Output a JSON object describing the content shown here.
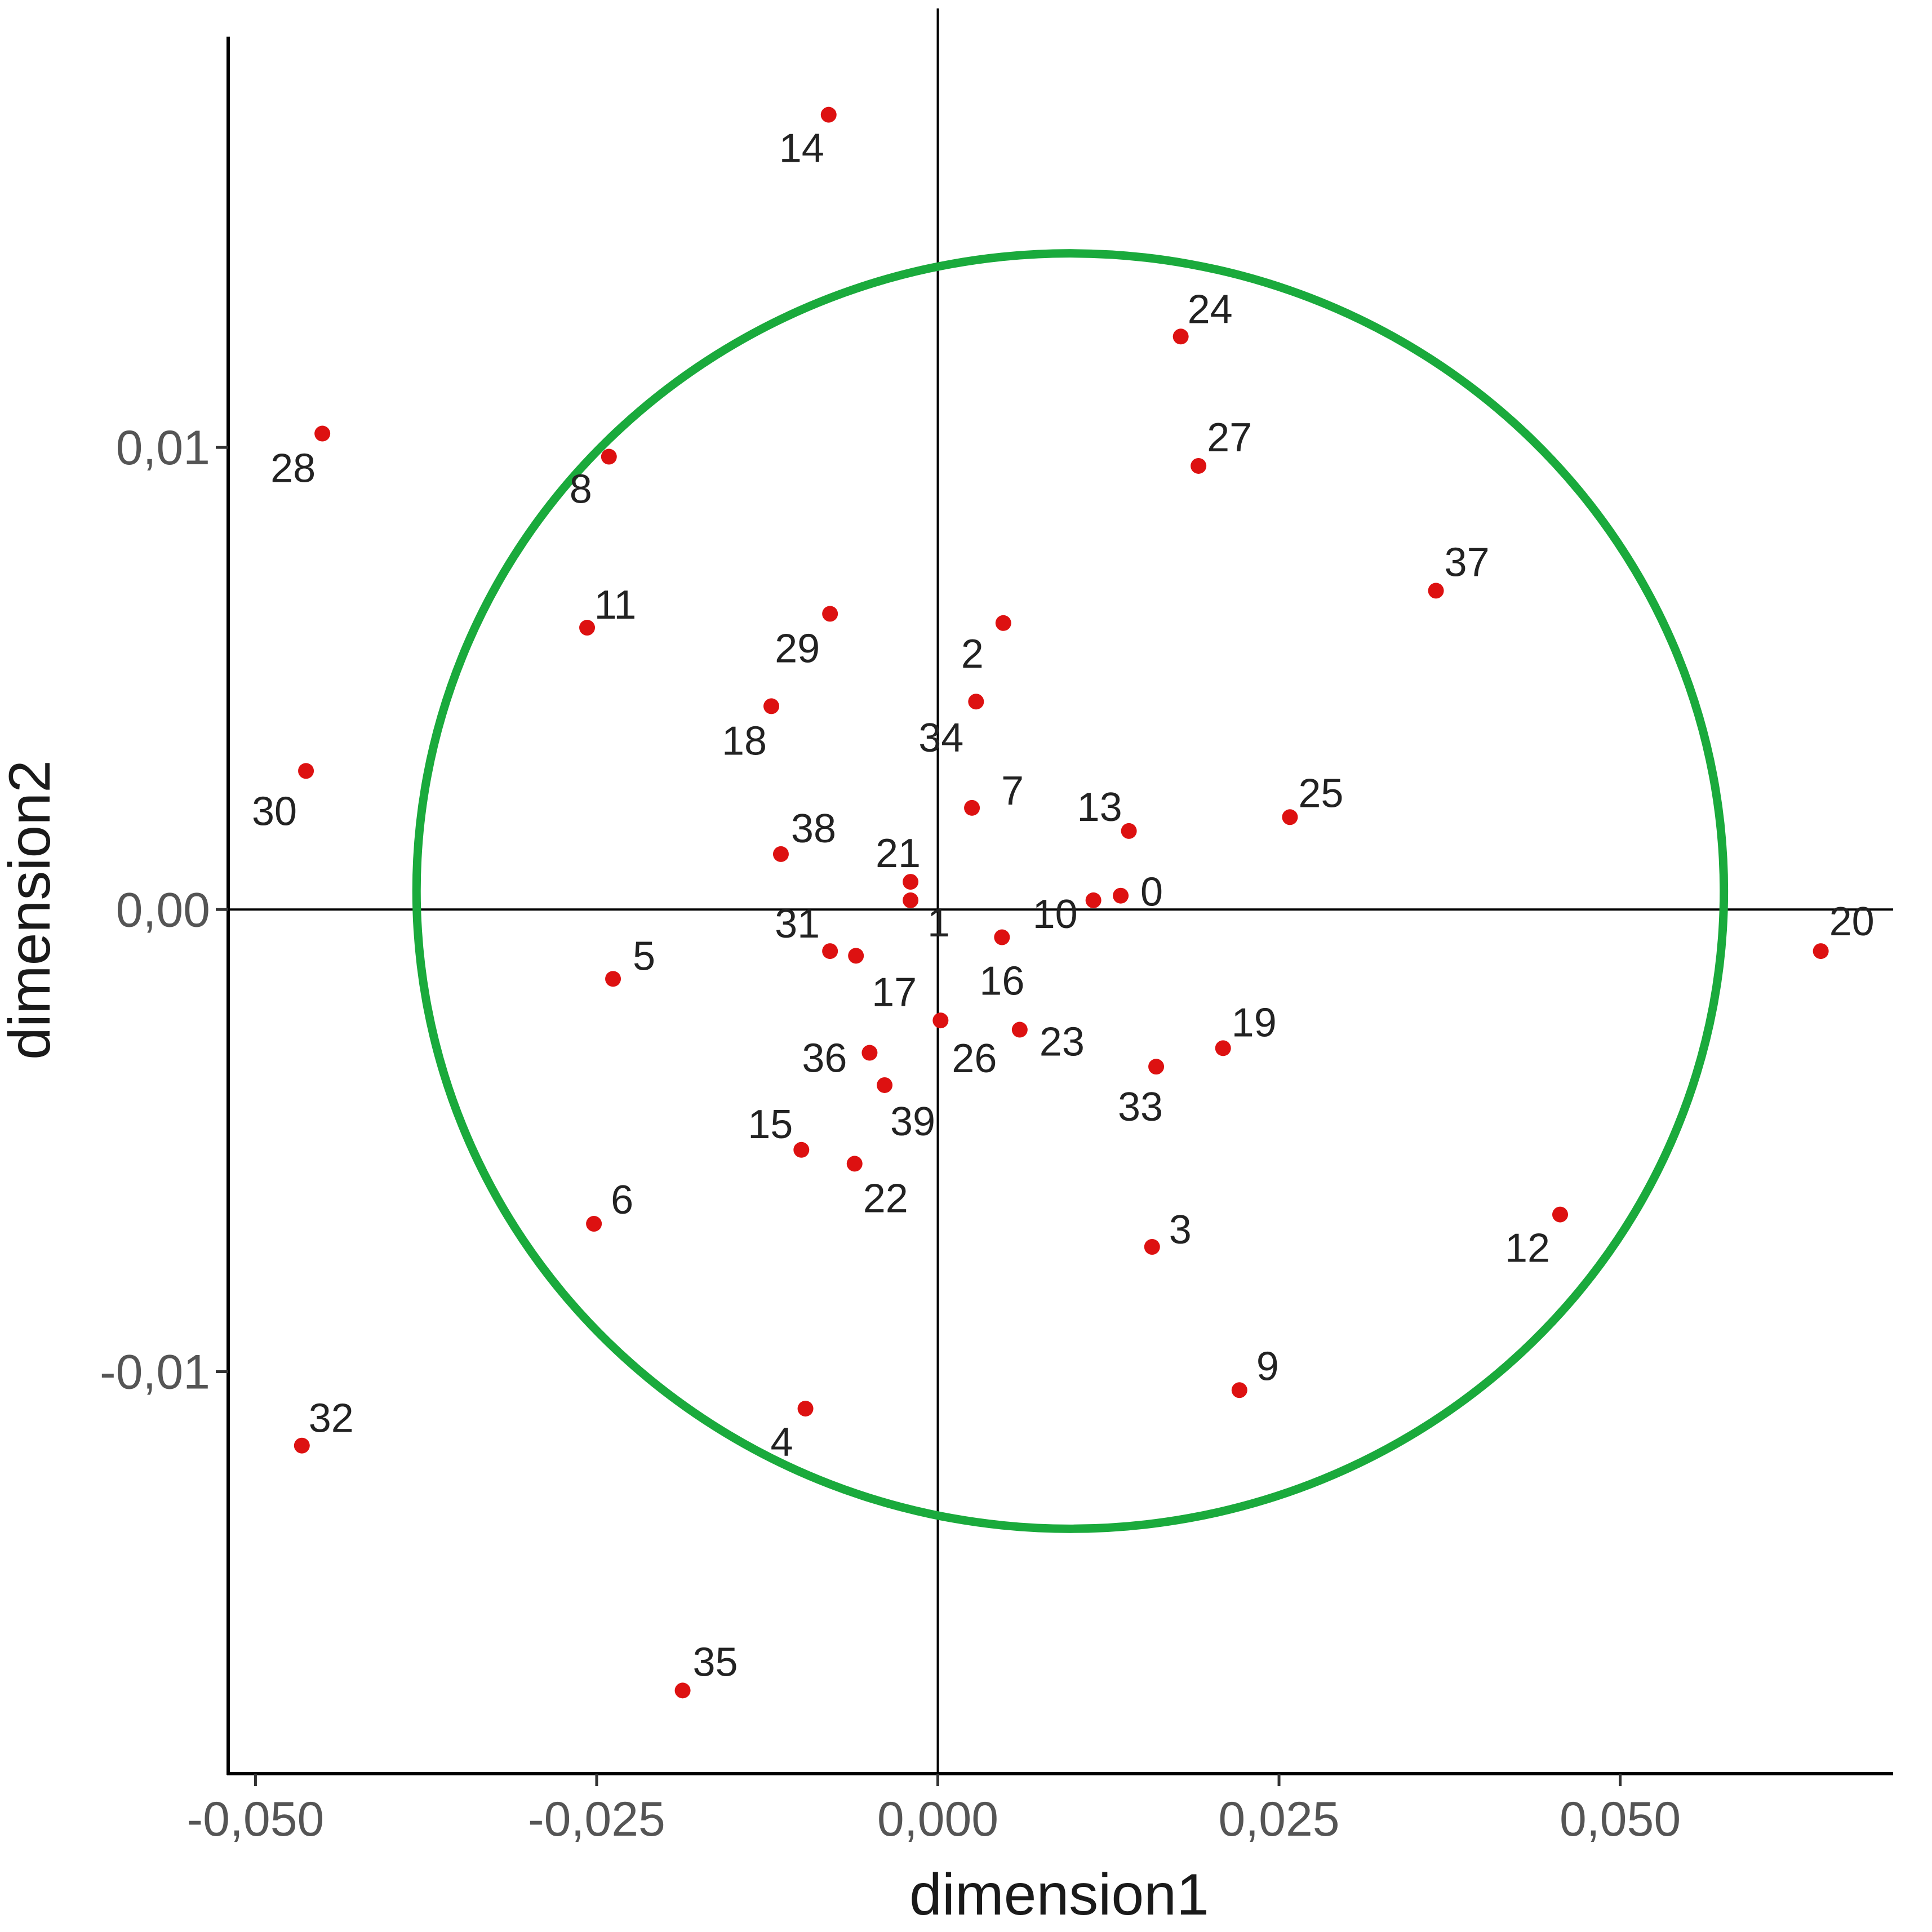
{
  "chart_data": {
    "type": "scatter",
    "title": "",
    "xlabel": "dimension1",
    "ylabel": "dimension2",
    "xlim": [
      -0.052,
      0.07
    ],
    "ylim": [
      -0.0187,
      0.0195
    ],
    "xticks": [
      {
        "value": -0.05,
        "label": "-0,050"
      },
      {
        "value": -0.025,
        "label": "-0,025"
      },
      {
        "value": 0.0,
        "label": "0,000"
      },
      {
        "value": 0.025,
        "label": "0,025"
      },
      {
        "value": 0.05,
        "label": "0,050"
      }
    ],
    "yticks": [
      {
        "value": 0.01,
        "label": "0,01"
      },
      {
        "value": 0.0,
        "label": "0,00"
      },
      {
        "value": -0.01,
        "label": "-0,01"
      }
    ],
    "grid": false,
    "reference_lines": {
      "x": 0,
      "y": 0
    },
    "circle": {
      "center": [
        0.0097,
        0.0004
      ],
      "rx": 0.0479,
      "ry": 0.0138,
      "color": "#1aaa3c"
    },
    "point_color": "#dd1111",
    "points": [
      {
        "label": "0",
        "x": 0.0134,
        "y": 0.0003
      },
      {
        "label": "1",
        "x": -0.002,
        "y": 0.0002
      },
      {
        "label": "2",
        "x": 0.0048,
        "y": 0.0062
      },
      {
        "label": "3",
        "x": 0.0157,
        "y": -0.0073
      },
      {
        "label": "4",
        "x": -0.0097,
        "y": -0.0108
      },
      {
        "label": "5",
        "x": -0.0238,
        "y": -0.0015
      },
      {
        "label": "6",
        "x": -0.0252,
        "y": -0.0068
      },
      {
        "label": "7",
        "x": 0.0025,
        "y": 0.0022
      },
      {
        "label": "8",
        "x": -0.0241,
        "y": 0.0098
      },
      {
        "label": "9",
        "x": 0.0221,
        "y": -0.0104
      },
      {
        "label": "10",
        "x": 0.0114,
        "y": 0.0002
      },
      {
        "label": "11",
        "x": -0.0257,
        "y": 0.0061
      },
      {
        "label": "12",
        "x": 0.0456,
        "y": -0.0066
      },
      {
        "label": "13",
        "x": 0.014,
        "y": 0.0017
      },
      {
        "label": "14",
        "x": -0.008,
        "y": 0.0172
      },
      {
        "label": "15",
        "x": -0.01,
        "y": -0.0052
      },
      {
        "label": "16",
        "x": 0.0047,
        "y": -0.0006
      },
      {
        "label": "17",
        "x": -0.006,
        "y": -0.001
      },
      {
        "label": "18",
        "x": -0.0122,
        "y": 0.0044
      },
      {
        "label": "19",
        "x": 0.0209,
        "y": -0.003
      },
      {
        "label": "20",
        "x": 0.0647,
        "y": -0.0009
      },
      {
        "label": "21",
        "x": -0.002,
        "y": 0.0006
      },
      {
        "label": "22",
        "x": -0.0061,
        "y": -0.0055
      },
      {
        "label": "23",
        "x": 0.006,
        "y": -0.0026
      },
      {
        "label": "24",
        "x": 0.0178,
        "y": 0.0124
      },
      {
        "label": "25",
        "x": 0.0258,
        "y": 0.002
      },
      {
        "label": "26",
        "x": 0.0002,
        "y": -0.0024
      },
      {
        "label": "27",
        "x": 0.0191,
        "y": 0.0096
      },
      {
        "label": "28",
        "x": -0.0451,
        "y": 0.0103
      },
      {
        "label": "29",
        "x": -0.0079,
        "y": 0.0064
      },
      {
        "label": "30",
        "x": -0.0463,
        "y": 0.003
      },
      {
        "label": "31",
        "x": -0.0079,
        "y": -0.0009
      },
      {
        "label": "32",
        "x": -0.0466,
        "y": -0.0116
      },
      {
        "label": "33",
        "x": 0.016,
        "y": -0.0034
      },
      {
        "label": "34",
        "x": 0.0028,
        "y": 0.0045
      },
      {
        "label": "35",
        "x": -0.0187,
        "y": -0.0169
      },
      {
        "label": "36",
        "x": -0.005,
        "y": -0.0031
      },
      {
        "label": "37",
        "x": 0.0365,
        "y": 0.0069
      },
      {
        "label": "38",
        "x": -0.0115,
        "y": 0.0012
      },
      {
        "label": "39",
        "x": -0.0039,
        "y": -0.0038
      }
    ]
  }
}
